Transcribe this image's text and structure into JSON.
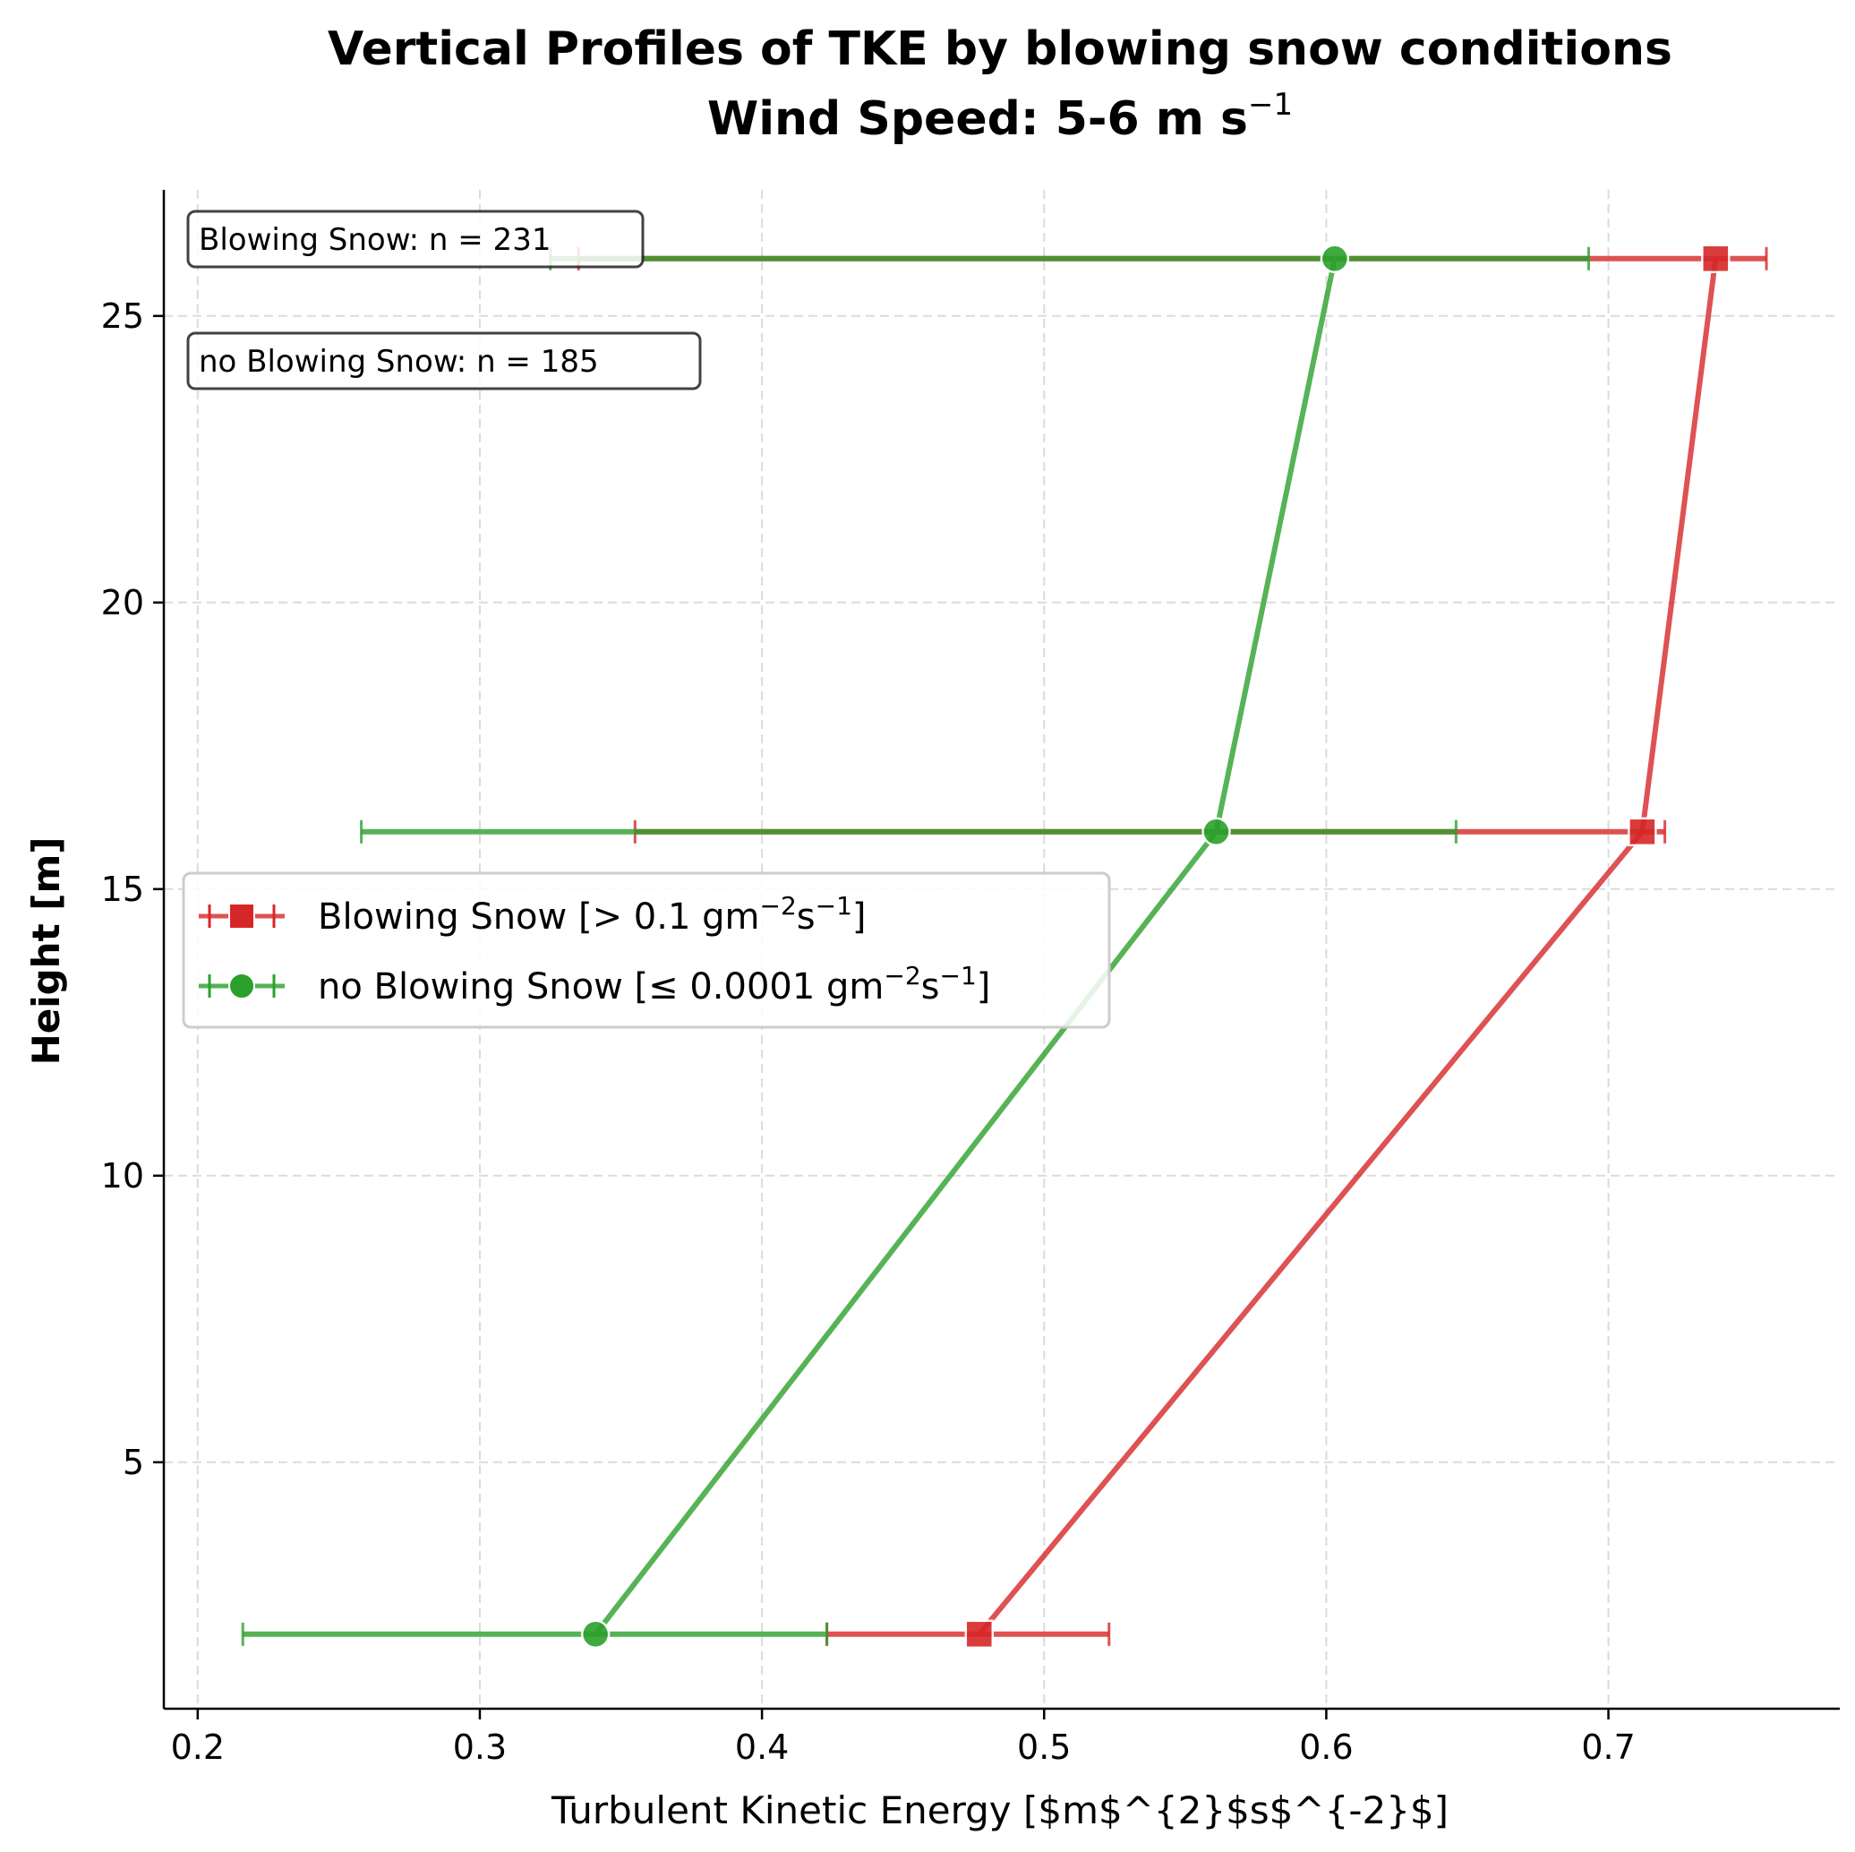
{
  "chart_data": {
    "type": "line",
    "title_line1": "Vertical Profiles of TKE by blowing snow conditions",
    "title_line2_main": "Wind Speed: 5-6 m s",
    "title_line2_sup": "−1",
    "xlabel": "Turbulent Kinetic Energy [$m$^{2}$s$^{-2}$]",
    "ylabel": "Height [m]",
    "xlim": [
      0.188,
      0.782
    ],
    "ylim": [
      0.7,
      27.2
    ],
    "xticks": [
      0.2,
      0.3,
      0.4,
      0.5,
      0.6,
      0.7
    ],
    "xtick_labels": [
      "0.2",
      "0.3",
      "0.4",
      "0.5",
      "0.6",
      "0.7"
    ],
    "yticks": [
      5,
      10,
      15,
      20,
      25
    ],
    "ytick_labels": [
      "5",
      "10",
      "15",
      "20",
      "25"
    ],
    "grid": true,
    "legend_position": "center-left",
    "series": [
      {
        "name": "Blowing Snow [> 0.1 gm",
        "name_sup1": "−2",
        "name_mid": "s",
        "name_sup2": "−1",
        "name_end": "]",
        "color": "#d62728",
        "marker": "square",
        "points": [
          {
            "x": 0.477,
            "y": 2,
            "xerr_low": 0.423,
            "xerr_high": 0.523
          },
          {
            "x": 0.712,
            "y": 16,
            "xerr_low": 0.355,
            "xerr_high": 0.72
          },
          {
            "x": 0.738,
            "y": 26,
            "xerr_low": 0.335,
            "xerr_high": 0.756
          }
        ]
      },
      {
        "name": "no Blowing Snow [≤ 0.0001 gm",
        "name_sup1": "−2",
        "name_mid": "s",
        "name_sup2": "−1",
        "name_end": "]",
        "color": "#2ca02c",
        "marker": "circle",
        "points": [
          {
            "x": 0.341,
            "y": 2,
            "xerr_low": 0.216,
            "xerr_high": 0.423
          },
          {
            "x": 0.561,
            "y": 16,
            "xerr_low": 0.258,
            "xerr_high": 0.646
          },
          {
            "x": 0.603,
            "y": 26,
            "xerr_low": 0.325,
            "xerr_high": 0.693
          }
        ]
      }
    ],
    "annotations": [
      {
        "text": "Blowing Snow: n = 231"
      },
      {
        "text": "no Blowing Snow: n = 185"
      }
    ]
  }
}
